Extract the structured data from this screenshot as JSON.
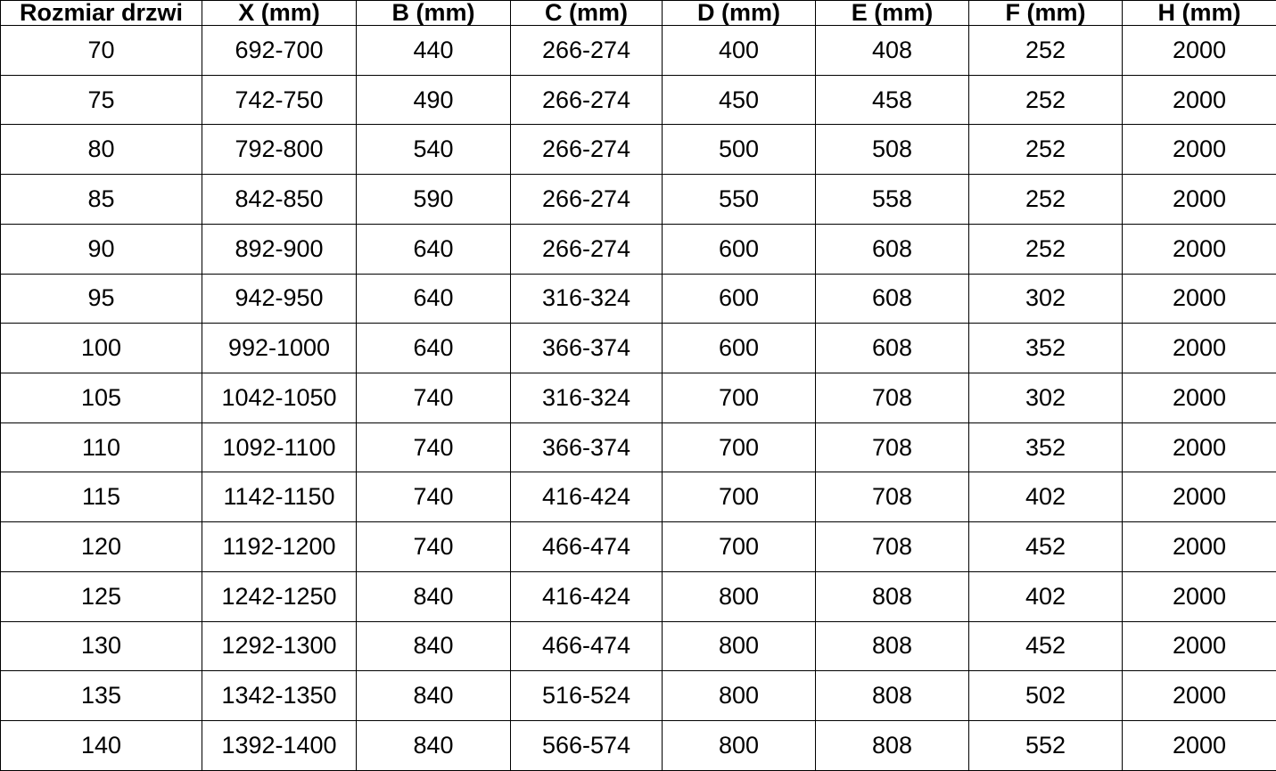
{
  "table": {
    "columns": [
      "Rozmiar drzwi",
      "X (mm)",
      "B (mm)",
      "C (mm)",
      "D (mm)",
      "E (mm)",
      "F (mm)",
      "H (mm)"
    ],
    "rows": [
      [
        "70",
        "692-700",
        "440",
        "266-274",
        "400",
        "408",
        "252",
        "2000"
      ],
      [
        "75",
        "742-750",
        "490",
        "266-274",
        "450",
        "458",
        "252",
        "2000"
      ],
      [
        "80",
        "792-800",
        "540",
        "266-274",
        "500",
        "508",
        "252",
        "2000"
      ],
      [
        "85",
        "842-850",
        "590",
        "266-274",
        "550",
        "558",
        "252",
        "2000"
      ],
      [
        "90",
        "892-900",
        "640",
        "266-274",
        "600",
        "608",
        "252",
        "2000"
      ],
      [
        "95",
        "942-950",
        "640",
        "316-324",
        "600",
        "608",
        "302",
        "2000"
      ],
      [
        "100",
        "992-1000",
        "640",
        "366-374",
        "600",
        "608",
        "352",
        "2000"
      ],
      [
        "105",
        "1042-1050",
        "740",
        "316-324",
        "700",
        "708",
        "302",
        "2000"
      ],
      [
        "110",
        "1092-1100",
        "740",
        "366-374",
        "700",
        "708",
        "352",
        "2000"
      ],
      [
        "115",
        "1142-1150",
        "740",
        "416-424",
        "700",
        "708",
        "402",
        "2000"
      ],
      [
        "120",
        "1192-1200",
        "740",
        "466-474",
        "700",
        "708",
        "452",
        "2000"
      ],
      [
        "125",
        "1242-1250",
        "840",
        "416-424",
        "800",
        "808",
        "402",
        "2000"
      ],
      [
        "130",
        "1292-1300",
        "840",
        "466-474",
        "800",
        "808",
        "452",
        "2000"
      ],
      [
        "135",
        "1342-1350",
        "840",
        "516-524",
        "800",
        "808",
        "502",
        "2000"
      ],
      [
        "140",
        "1392-1400",
        "840",
        "566-574",
        "800",
        "808",
        "552",
        "2000"
      ]
    ],
    "colors": {
      "border": "#000000",
      "text": "#000000",
      "background": "#ffffff"
    }
  }
}
